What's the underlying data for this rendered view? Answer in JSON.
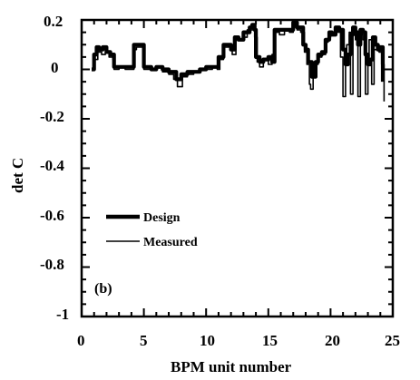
{
  "chart_data": {
    "type": "line",
    "title": "",
    "xlabel": "BPM unit number",
    "ylabel": "det C",
    "xlim": [
      0,
      25
    ],
    "ylim": [
      -1,
      0.2
    ],
    "xticks": [
      0,
      5,
      10,
      15,
      20,
      25
    ],
    "xtick_labels": [
      "0",
      "5",
      "10",
      "15",
      "20",
      "25"
    ],
    "yticks": [
      0.2,
      0,
      -0.2,
      -0.4,
      -0.6,
      -0.8,
      -1
    ],
    "ytick_labels": [
      "0.2",
      "0",
      "-0.2",
      "-0.4",
      "-0.6",
      "-0.8",
      "-1"
    ],
    "grid": false,
    "legend_position": "lower-left",
    "panel_label": "(b)",
    "series": [
      {
        "name": "Design",
        "style": "thick",
        "x": [
          0.8,
          1.0,
          1.2,
          1.4,
          1.7,
          2.0,
          2.3,
          2.6,
          2.9,
          3.2,
          3.6,
          4.0,
          4.2,
          4.4,
          4.6,
          5.0,
          5.4,
          5.6,
          6.0,
          6.5,
          7.0,
          7.4,
          7.6,
          7.8,
          8.0,
          8.5,
          9.0,
          9.5,
          10.0,
          10.5,
          10.9,
          11.0,
          11.4,
          11.7,
          12.0,
          12.3,
          12.6,
          13.0,
          13.3,
          13.5,
          13.7,
          13.9,
          14.0,
          14.3,
          14.6,
          15.0,
          15.3,
          15.5,
          15.8,
          16.2,
          16.6,
          17.0,
          17.3,
          17.6,
          17.8,
          18.0,
          18.2,
          18.5,
          18.8,
          19.0,
          19.3,
          19.6,
          19.9,
          20.1,
          20.4,
          20.7,
          21.0,
          21.2,
          21.4,
          21.6,
          21.8,
          22.0,
          22.2,
          22.4,
          22.6,
          22.8,
          23.0,
          23.2,
          23.4,
          23.6,
          23.8,
          24.0,
          24.2
        ],
        "y": [
          0.0,
          0.06,
          0.09,
          0.08,
          0.09,
          0.07,
          0.06,
          0.01,
          0.01,
          0.01,
          0.01,
          0.01,
          0.1,
          0.1,
          0.1,
          0.01,
          0.01,
          0.0,
          0.01,
          0.0,
          -0.01,
          -0.01,
          -0.04,
          -0.04,
          -0.02,
          -0.01,
          -0.01,
          0.0,
          0.01,
          0.01,
          0.01,
          0.05,
          0.1,
          0.1,
          0.08,
          0.13,
          0.12,
          0.15,
          0.15,
          0.17,
          0.18,
          0.16,
          0.05,
          0.03,
          0.04,
          0.05,
          0.03,
          0.16,
          0.16,
          0.16,
          0.16,
          0.19,
          0.17,
          0.17,
          0.1,
          0.08,
          0.03,
          -0.03,
          0.03,
          0.06,
          0.07,
          0.12,
          0.15,
          0.14,
          0.17,
          0.16,
          0.08,
          0.02,
          0.06,
          0.14,
          0.17,
          0.15,
          0.1,
          0.16,
          0.15,
          0.06,
          0.02,
          0.04,
          0.13,
          0.1,
          0.08,
          0.09,
          -0.05
        ]
      },
      {
        "name": "Measured",
        "style": "thin",
        "x": [
          0.8,
          1.0,
          1.3,
          1.6,
          1.9,
          2.2,
          2.5,
          2.6,
          3.0,
          3.5,
          4.0,
          4.2,
          4.4,
          4.6,
          5.0,
          5.5,
          6.0,
          6.5,
          7.0,
          7.4,
          7.7,
          7.9,
          8.1,
          8.5,
          9.0,
          9.5,
          10.0,
          10.5,
          10.9,
          11.1,
          11.4,
          11.8,
          12.1,
          12.4,
          12.7,
          13.0,
          13.3,
          13.5,
          13.8,
          13.9,
          14.1,
          14.3,
          14.6,
          15.0,
          15.3,
          15.5,
          15.9,
          16.3,
          16.7,
          17.0,
          17.3,
          17.6,
          17.9,
          18.1,
          18.3,
          18.4,
          18.6,
          18.8,
          19.0,
          19.3,
          19.6,
          19.8,
          20.0,
          20.2,
          20.4,
          20.6,
          20.8,
          21.0,
          21.2,
          21.3,
          21.5,
          21.6,
          21.8,
          22.0,
          22.2,
          22.4,
          22.6,
          22.8,
          23.0,
          23.1,
          23.3,
          23.5,
          23.7,
          23.9,
          24.1,
          24.3
        ],
        "y": [
          0.0,
          0.04,
          0.07,
          0.06,
          0.07,
          0.05,
          0.04,
          0.0,
          0.01,
          0.0,
          0.0,
          0.08,
          0.09,
          0.09,
          0.0,
          0.0,
          0.01,
          -0.01,
          -0.02,
          -0.04,
          -0.07,
          -0.07,
          -0.03,
          -0.02,
          -0.01,
          0.0,
          0.0,
          0.01,
          0.0,
          0.04,
          0.09,
          0.1,
          0.06,
          0.12,
          0.12,
          0.13,
          0.16,
          0.16,
          0.18,
          0.13,
          0.03,
          0.01,
          0.04,
          0.02,
          0.06,
          0.15,
          0.14,
          0.16,
          0.15,
          0.18,
          0.16,
          0.15,
          0.07,
          0.02,
          -0.06,
          -0.08,
          -0.02,
          0.02,
          0.05,
          0.06,
          0.11,
          0.13,
          0.14,
          0.15,
          0.17,
          0.15,
          0.05,
          -0.11,
          0.08,
          0.1,
          0.15,
          -0.1,
          0.16,
          0.12,
          -0.11,
          0.14,
          0.12,
          -0.1,
          0.05,
          0.12,
          -0.06,
          0.08,
          0.1,
          0.07,
          0.02,
          -0.13
        ]
      }
    ]
  }
}
